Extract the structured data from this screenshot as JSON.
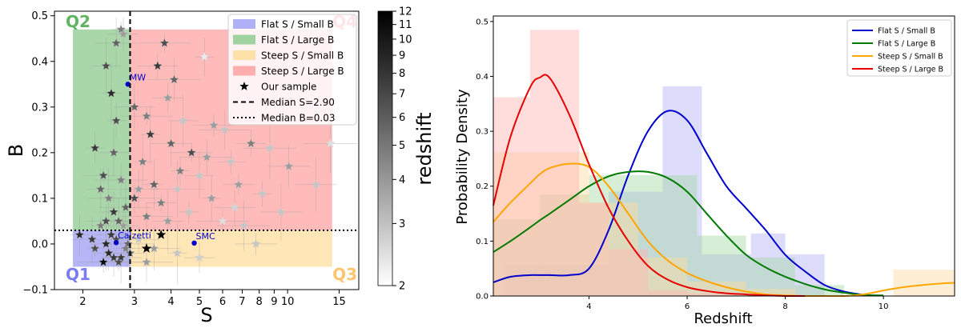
{
  "chart_data": [
    {
      "type": "scatter",
      "xlabel": "S",
      "ylabel": "B",
      "x_scale": "log",
      "xlim": [
        1.6,
        17.5
      ],
      "ylim": [
        -0.1,
        0.51
      ],
      "xticks": [
        2,
        3,
        4,
        5,
        6,
        7,
        8,
        9,
        10,
        15
      ],
      "yticks": [
        -0.1,
        0.0,
        0.1,
        0.2,
        0.3,
        0.4,
        0.5
      ],
      "ytick_labels": [
        "−0.1",
        "0.0",
        "0.1",
        "0.2",
        "0.3",
        "0.4",
        "0.5"
      ],
      "median_S": 2.9,
      "median_B": 0.03,
      "quadrant_labels": [
        {
          "text": "Q2",
          "color": "#5fb55f"
        },
        {
          "text": "Q4",
          "color": "#ff6e6e"
        },
        {
          "text": "Q1",
          "color": "#7b7bf2"
        },
        {
          "text": "Q3",
          "color": "#ffc56e"
        }
      ],
      "regions": [
        {
          "name": "Flat S / Small B",
          "color": "#9999f5",
          "xmin": 1.85,
          "xmax": 2.9,
          "ymin": -0.05,
          "ymax": 0.03
        },
        {
          "name": "Flat S / Large B",
          "color": "#88c888",
          "xmin": 1.85,
          "xmax": 2.9,
          "ymin": 0.03,
          "ymax": 0.47
        },
        {
          "name": "Steep S / Small B",
          "color": "#ffdc9a",
          "xmin": 2.9,
          "xmax": 14.2,
          "ymin": -0.05,
          "ymax": 0.03
        },
        {
          "name": "Steep S / Large B",
          "color": "#ffa0a0",
          "xmin": 2.9,
          "xmax": 14.2,
          "ymin": 0.03,
          "ymax": 0.47
        }
      ],
      "legend": [
        {
          "label": "Flat S / Small B",
          "kind": "patch",
          "color": "#b0b0f7"
        },
        {
          "label": "Flat S / Large B",
          "kind": "patch",
          "color": "#9fd29f"
        },
        {
          "label": "Steep S / Small B",
          "kind": "patch",
          "color": "#ffe0a8"
        },
        {
          "label": "Steep S / Large B",
          "kind": "patch",
          "color": "#ffadad"
        },
        {
          "label": "Our sample",
          "kind": "star"
        },
        {
          "label": "Median S=2.90",
          "kind": "dashed"
        },
        {
          "label": "Median B=0.03",
          "kind": "dotted"
        }
      ],
      "reference_curves": [
        {
          "label": "MW",
          "S": 2.85,
          "B": 0.35
        },
        {
          "label": "Calzetti",
          "S": 2.6,
          "B": 0.003
        },
        {
          "label": "SMC",
          "S": 4.8,
          "B": 0.002
        }
      ],
      "colorbar": {
        "label": "redshift",
        "min": 2,
        "max": 12,
        "ticks": [
          2,
          3,
          4,
          5,
          6,
          7,
          8,
          9,
          10,
          11,
          12
        ]
      },
      "points": [
        [
          2.7,
          0.47,
          5
        ],
        [
          2.75,
          0.46,
          4
        ],
        [
          2.6,
          0.44,
          6
        ],
        [
          3.8,
          0.44,
          7
        ],
        [
          5.2,
          0.41,
          2.3
        ],
        [
          2.4,
          0.39,
          7
        ],
        [
          3.6,
          0.39,
          8
        ],
        [
          4.1,
          0.36,
          6
        ],
        [
          2.5,
          0.33,
          9
        ],
        [
          3.9,
          0.32,
          4
        ],
        [
          3.0,
          0.3,
          6
        ],
        [
          3.3,
          0.28,
          5
        ],
        [
          2.6,
          0.27,
          7
        ],
        [
          4.4,
          0.27,
          3
        ],
        [
          5.6,
          0.26,
          4
        ],
        [
          6.1,
          0.25,
          3
        ],
        [
          3.4,
          0.24,
          8
        ],
        [
          7.5,
          0.22,
          5
        ],
        [
          4.0,
          0.22,
          6
        ],
        [
          8.7,
          0.21,
          3
        ],
        [
          2.2,
          0.21,
          8
        ],
        [
          2.55,
          0.2,
          6
        ],
        [
          4.7,
          0.2,
          7
        ],
        [
          5.3,
          0.19,
          4
        ],
        [
          3.2,
          0.18,
          5
        ],
        [
          6.4,
          0.18,
          3
        ],
        [
          10.1,
          0.17,
          4
        ],
        [
          14.0,
          0.22,
          2.5
        ],
        [
          4.3,
          0.16,
          5
        ],
        [
          5.0,
          0.15,
          3
        ],
        [
          2.35,
          0.15,
          7
        ],
        [
          2.7,
          0.14,
          5
        ],
        [
          3.5,
          0.13,
          6
        ],
        [
          6.8,
          0.13,
          4
        ],
        [
          3.1,
          0.12,
          4
        ],
        [
          4.2,
          0.12,
          3
        ],
        [
          8.2,
          0.11,
          3
        ],
        [
          2.3,
          0.12,
          6
        ],
        [
          2.45,
          0.1,
          5
        ],
        [
          3.0,
          0.1,
          7
        ],
        [
          5.5,
          0.1,
          4
        ],
        [
          3.7,
          0.09,
          5
        ],
        [
          6.6,
          0.08,
          2.7
        ],
        [
          2.8,
          0.08,
          6
        ],
        [
          4.6,
          0.07,
          3
        ],
        [
          2.55,
          0.07,
          8
        ],
        [
          9.5,
          0.07,
          3
        ],
        [
          3.3,
          0.06,
          5
        ],
        [
          2.65,
          0.05,
          6
        ],
        [
          3.9,
          0.05,
          4
        ],
        [
          2.4,
          0.05,
          7
        ],
        [
          7.1,
          0.04,
          3
        ],
        [
          2.3,
          0.04,
          5
        ],
        [
          2.75,
          0.04,
          4
        ],
        [
          12.5,
          0.13,
          3
        ],
        [
          6.0,
          0.05,
          2.5
        ],
        [
          1.95,
          0.02,
          9
        ],
        [
          2.5,
          0.02,
          8
        ],
        [
          2.6,
          0.01,
          7
        ],
        [
          2.85,
          0.0,
          6
        ],
        [
          2.2,
          -0.01,
          7
        ],
        [
          2.45,
          -0.02,
          9
        ],
        [
          2.7,
          -0.03,
          8
        ],
        [
          2.35,
          -0.04,
          11
        ],
        [
          2.55,
          -0.03,
          8
        ],
        [
          2.9,
          -0.02,
          6
        ],
        [
          3.1,
          0.01,
          3
        ],
        [
          3.5,
          -0.01,
          4
        ],
        [
          4.2,
          -0.02,
          3
        ],
        [
          5.0,
          -0.03,
          2.8
        ],
        [
          2.15,
          0.01,
          8
        ],
        [
          2.65,
          -0.04,
          7
        ],
        [
          2.8,
          -0.01,
          5
        ],
        [
          2.4,
          0.0,
          9
        ],
        [
          7.8,
          0.0,
          3
        ],
        [
          3.3,
          -0.04,
          4
        ]
      ],
      "our_sample": [
        [
          3.7,
          0.02
        ],
        [
          3.3,
          -0.01
        ]
      ]
    },
    {
      "type": "area",
      "xlabel": "Redshift",
      "ylabel": "Probability Density",
      "xlim": [
        2.05,
        11.45
      ],
      "ylim": [
        0,
        0.51
      ],
      "xticks": [
        4,
        6,
        8,
        10
      ],
      "yticks": [
        0.0,
        0.1,
        0.2,
        0.3,
        0.4,
        0.5
      ],
      "ytick_labels": [
        "0.0",
        "0.1",
        "0.2",
        "0.3",
        "0.4",
        "0.5"
      ],
      "x": [
        2.05,
        2.4,
        2.8,
        3.0,
        3.2,
        3.6,
        4.0,
        4.4,
        4.8,
        5.2,
        5.6,
        6.0,
        6.4,
        6.8,
        7.2,
        7.6,
        8.0,
        8.4,
        8.8,
        9.2,
        9.6,
        10.0,
        10.4,
        10.8,
        11.2,
        11.45
      ],
      "series": [
        {
          "name": "Flat S / Small B",
          "color": "#0000cc",
          "values": [
            0.025,
            0.035,
            0.038,
            0.038,
            0.038,
            0.038,
            0.05,
            0.12,
            0.22,
            0.3,
            0.337,
            0.32,
            0.26,
            0.2,
            0.16,
            0.12,
            0.075,
            0.045,
            0.02,
            0.008,
            0.002,
            null,
            null,
            null,
            null,
            null
          ]
        },
        {
          "name": "Flat S / Large B",
          "color": "#007a00",
          "values": [
            0.08,
            0.1,
            0.125,
            0.138,
            0.15,
            0.175,
            0.2,
            0.218,
            0.226,
            0.226,
            0.215,
            0.19,
            0.15,
            0.11,
            0.075,
            0.052,
            0.035,
            0.022,
            0.012,
            0.006,
            0.002,
            0.001,
            null,
            null,
            null,
            null
          ]
        },
        {
          "name": "Steep S / Small B",
          "color": "#ffa500",
          "values": [
            0.135,
            0.17,
            0.205,
            0.222,
            0.233,
            0.241,
            0.235,
            0.2,
            0.15,
            0.1,
            0.065,
            0.042,
            0.027,
            0.016,
            0.008,
            0.003,
            0.001,
            0.0,
            0.0,
            0.0,
            0.003,
            0.01,
            0.016,
            0.02,
            0.023,
            0.024
          ]
        },
        {
          "name": "Steep S / Large B",
          "color": "#e60000",
          "values": [
            0.165,
            0.29,
            0.38,
            0.398,
            0.397,
            0.33,
            0.24,
            0.16,
            0.1,
            0.055,
            0.03,
            0.016,
            0.009,
            0.005,
            0.003,
            0.001,
            0.0,
            0.0,
            null,
            null,
            null,
            null,
            null,
            null,
            null,
            null
          ]
        }
      ],
      "histograms": [
        {
          "name": "Flat S / Small B",
          "color": "#b3b3f7",
          "bins": [
            [
              2.3,
              3.3,
              0.057
            ],
            [
              3.3,
              4.4,
              0.057
            ],
            [
              4.4,
              5.5,
              0.19
            ],
            [
              5.5,
              6.3,
              0.382
            ],
            [
              6.3,
              7.3,
              0.076
            ],
            [
              7.3,
              8.0,
              0.114
            ],
            [
              8.0,
              8.8,
              0.076
            ]
          ]
        },
        {
          "name": "Flat S / Large B",
          "color": "#a5d8a5",
          "values_note": "visible bars",
          "bins": [
            [
              2.05,
              3.0,
              0.14
            ],
            [
              3.0,
              4.0,
              0.185
            ],
            [
              4.0,
              5.0,
              0.22
            ],
            [
              5.0,
              6.2,
              0.22
            ],
            [
              6.2,
              7.2,
              0.11
            ],
            [
              7.2,
              8.2,
              0.07
            ],
            [
              8.2,
              9.2,
              0.02
            ]
          ]
        },
        {
          "name": "Steep S / Small B",
          "color": "#ffd9a0",
          "bins": [
            [
              2.05,
              3.0,
              0.262
            ],
            [
              3.0,
              4.0,
              0.262
            ],
            [
              4.0,
              5.0,
              0.17
            ],
            [
              5.0,
              6.0,
              0.07
            ],
            [
              6.0,
              7.2,
              0.026
            ],
            [
              7.2,
              8.2,
              0.013
            ],
            [
              10.2,
              11.45,
              0.048
            ]
          ]
        },
        {
          "name": "Steep S / Large B",
          "color": "#ffb3b3",
          "bins": [
            [
              2.05,
              2.8,
              0.362
            ],
            [
              2.8,
              3.8,
              0.485
            ],
            [
              3.8,
              4.4,
              0.17
            ],
            [
              4.4,
              5.2,
              0.085
            ],
            [
              5.2,
              6.0,
              0.01
            ],
            [
              6.0,
              7.0,
              0.005
            ]
          ]
        }
      ]
    }
  ]
}
